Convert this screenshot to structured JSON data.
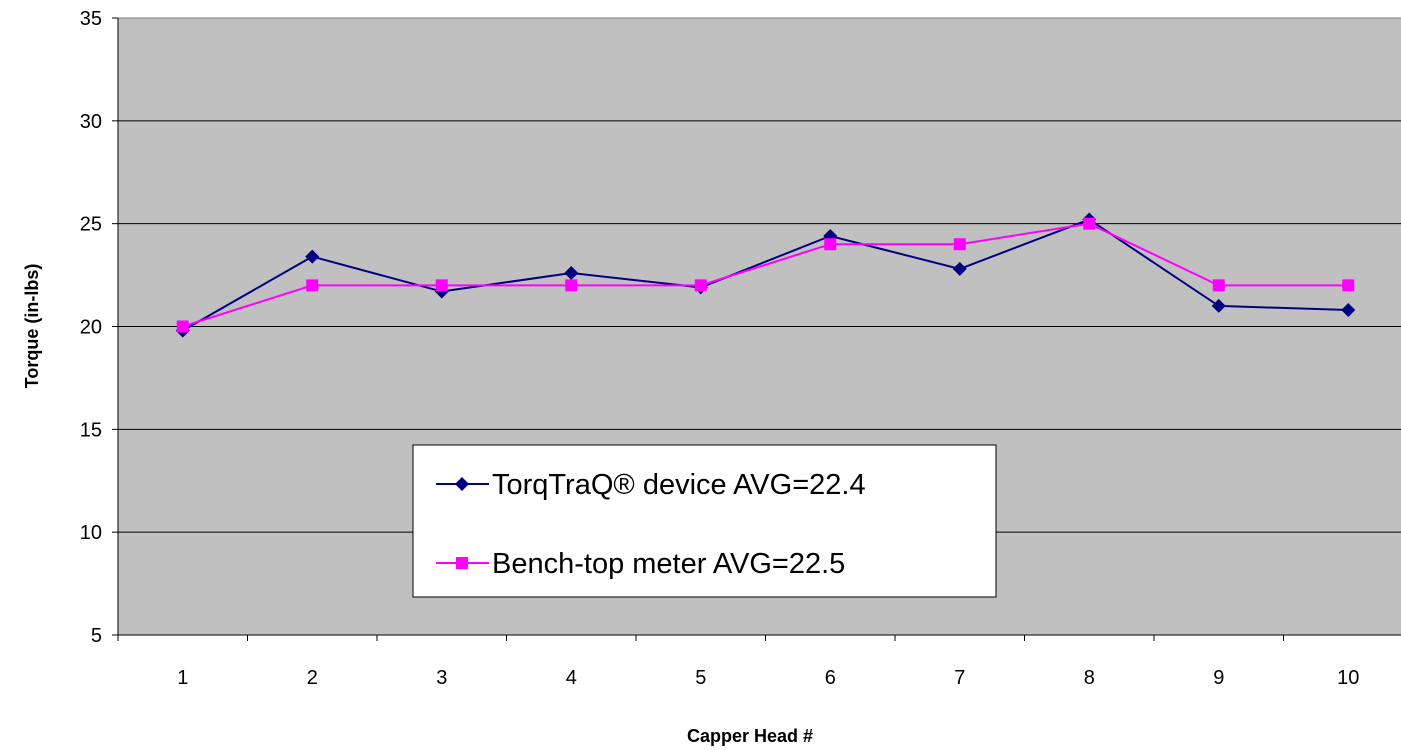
{
  "chart_data": {
    "type": "line",
    "title": "",
    "xlabel": "Capper Head #",
    "ylabel": "Torque (in-lbs)",
    "categories": [
      "1",
      "2",
      "3",
      "4",
      "5",
      "6",
      "7",
      "8",
      "9",
      "10"
    ],
    "ylim": [
      5,
      35
    ],
    "yticks": [
      "5",
      "10",
      "15",
      "20",
      "25",
      "30",
      "35"
    ],
    "grid": "horizontal",
    "plot_background": "#C0C0C0",
    "legend_position": "inside-bottom-center",
    "series": [
      {
        "name": "TorqTraQ® device AVG=22.4",
        "color": "#000080",
        "marker": "diamond",
        "values": [
          19.8,
          23.4,
          21.7,
          22.6,
          21.9,
          24.4,
          22.8,
          25.2,
          21.0,
          20.8
        ]
      },
      {
        "name": "Bench-top meter AVG=22.5",
        "color": "#FF00FF",
        "marker": "square",
        "values": [
          20,
          22,
          22,
          22,
          22,
          24,
          24,
          25,
          22,
          22
        ]
      }
    ]
  }
}
